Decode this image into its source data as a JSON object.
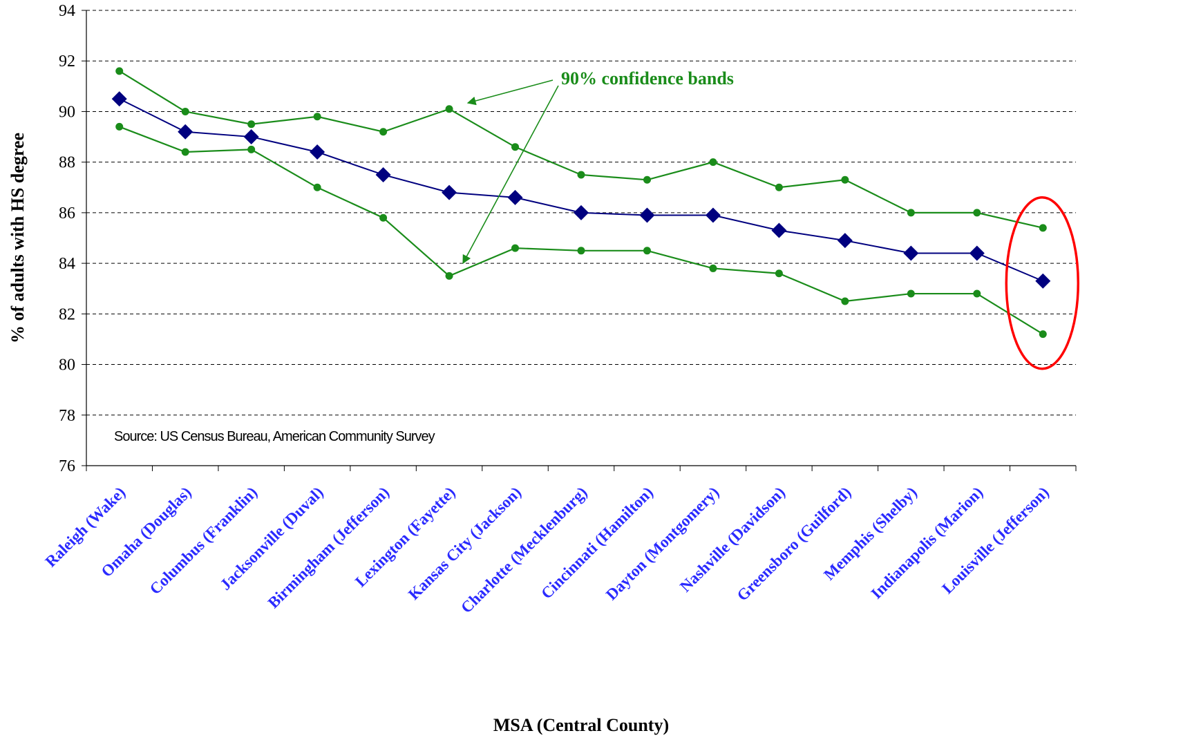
{
  "chart_data": {
    "type": "line",
    "categories": [
      "Raleigh (Wake)",
      "Omaha (Douglas)",
      "Columbus (Franklin)",
      "Jacksonville (Duval)",
      "Birmingham (Jefferson)",
      "Lexington (Fayette)",
      "Kansas City (Jackson)",
      "Charlotte (Mecklenburg)",
      "Cincinnati (Hamilton)",
      "Dayton (Montgomery)",
      "Nashville (Davidson)",
      "Greensboro (Guilford)",
      "Memphis (Shelby)",
      "Indianapolis (Marion)",
      "Louisville (Jefferson)"
    ],
    "series": [
      {
        "role": "upper",
        "color": "#1a8c1a",
        "marker": "circle",
        "values": [
          91.6,
          90.0,
          89.5,
          89.8,
          89.2,
          90.1,
          88.6,
          87.5,
          87.3,
          88.0,
          87.0,
          87.3,
          86.0,
          86.0,
          85.4
        ]
      },
      {
        "role": "estimate",
        "color": "#00007f",
        "marker": "diamond",
        "values": [
          90.5,
          89.2,
          89.0,
          88.4,
          87.5,
          86.8,
          86.6,
          86.0,
          85.9,
          85.9,
          85.3,
          84.9,
          84.4,
          84.4,
          83.3
        ]
      },
      {
        "role": "lower",
        "color": "#1a8c1a",
        "marker": "circle",
        "values": [
          89.4,
          88.4,
          88.5,
          87.0,
          85.8,
          83.5,
          84.6,
          84.5,
          84.5,
          83.8,
          83.6,
          82.5,
          82.8,
          82.8,
          81.2
        ]
      }
    ],
    "xlabel": "MSA (Central County)",
    "ylabel": "% of adults with HS degree",
    "ylim": [
      76,
      94
    ],
    "yticks": [
      76,
      78,
      80,
      82,
      84,
      86,
      88,
      90,
      92,
      94
    ],
    "grid": "horizontal dashed",
    "annotation": "90% confidence bands",
    "source": "Source: US Census Bureau, American Community Survey",
    "highlight": "Louisville (Jefferson)",
    "highlight_color": "#ff0000",
    "label_color": "#2a2aff"
  }
}
